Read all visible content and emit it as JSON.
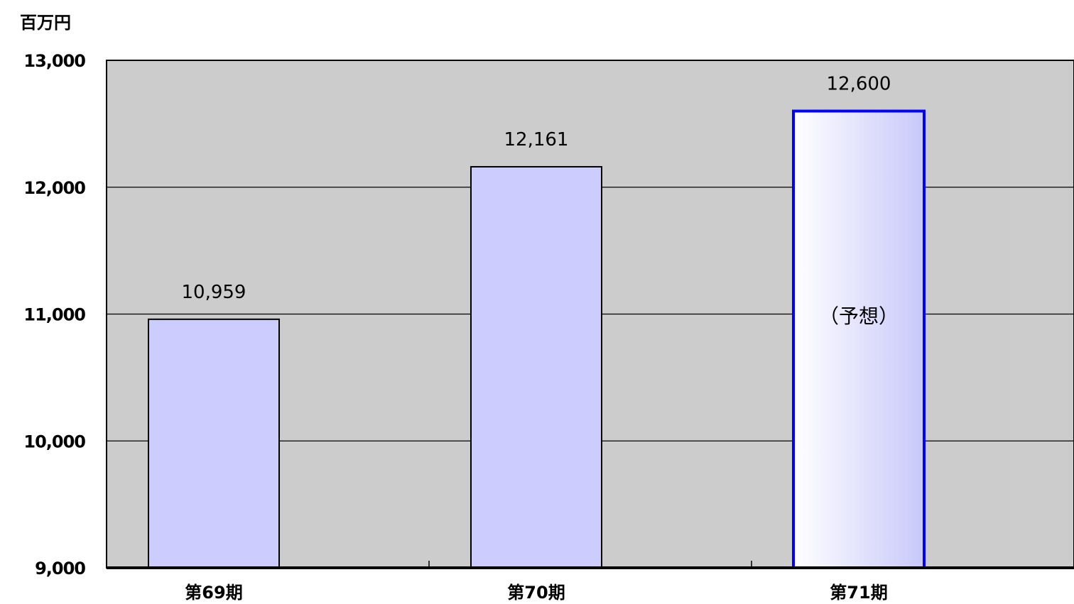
{
  "chart_data": {
    "type": "bar",
    "unit_label": "百万円",
    "categories": [
      "第69期",
      "第70期",
      "第71期"
    ],
    "values": [
      10959,
      12161,
      12600
    ],
    "data_labels": [
      "10,959",
      "12,161",
      "12,600"
    ],
    "ylim": [
      9000,
      13000
    ],
    "yticks": [
      9000,
      10000,
      11000,
      12000,
      13000
    ],
    "ytick_labels": [
      "9,000",
      "10,000",
      "11,000",
      "12,000",
      "13,000"
    ],
    "annotations": [
      {
        "category": "第71期",
        "text": "（予想）"
      }
    ],
    "highlighted_category": "第71期",
    "grid": true,
    "legend": "none",
    "colors": {
      "plot_background": "#cccccc",
      "bar_fill": "#ccccff",
      "bar_edge": "#000000",
      "forecast_edge": "#0000ff",
      "forecast_fill_light": "#ffffff",
      "forecast_fill_dark": "#c8c8fa",
      "gridline": "#000000"
    }
  }
}
